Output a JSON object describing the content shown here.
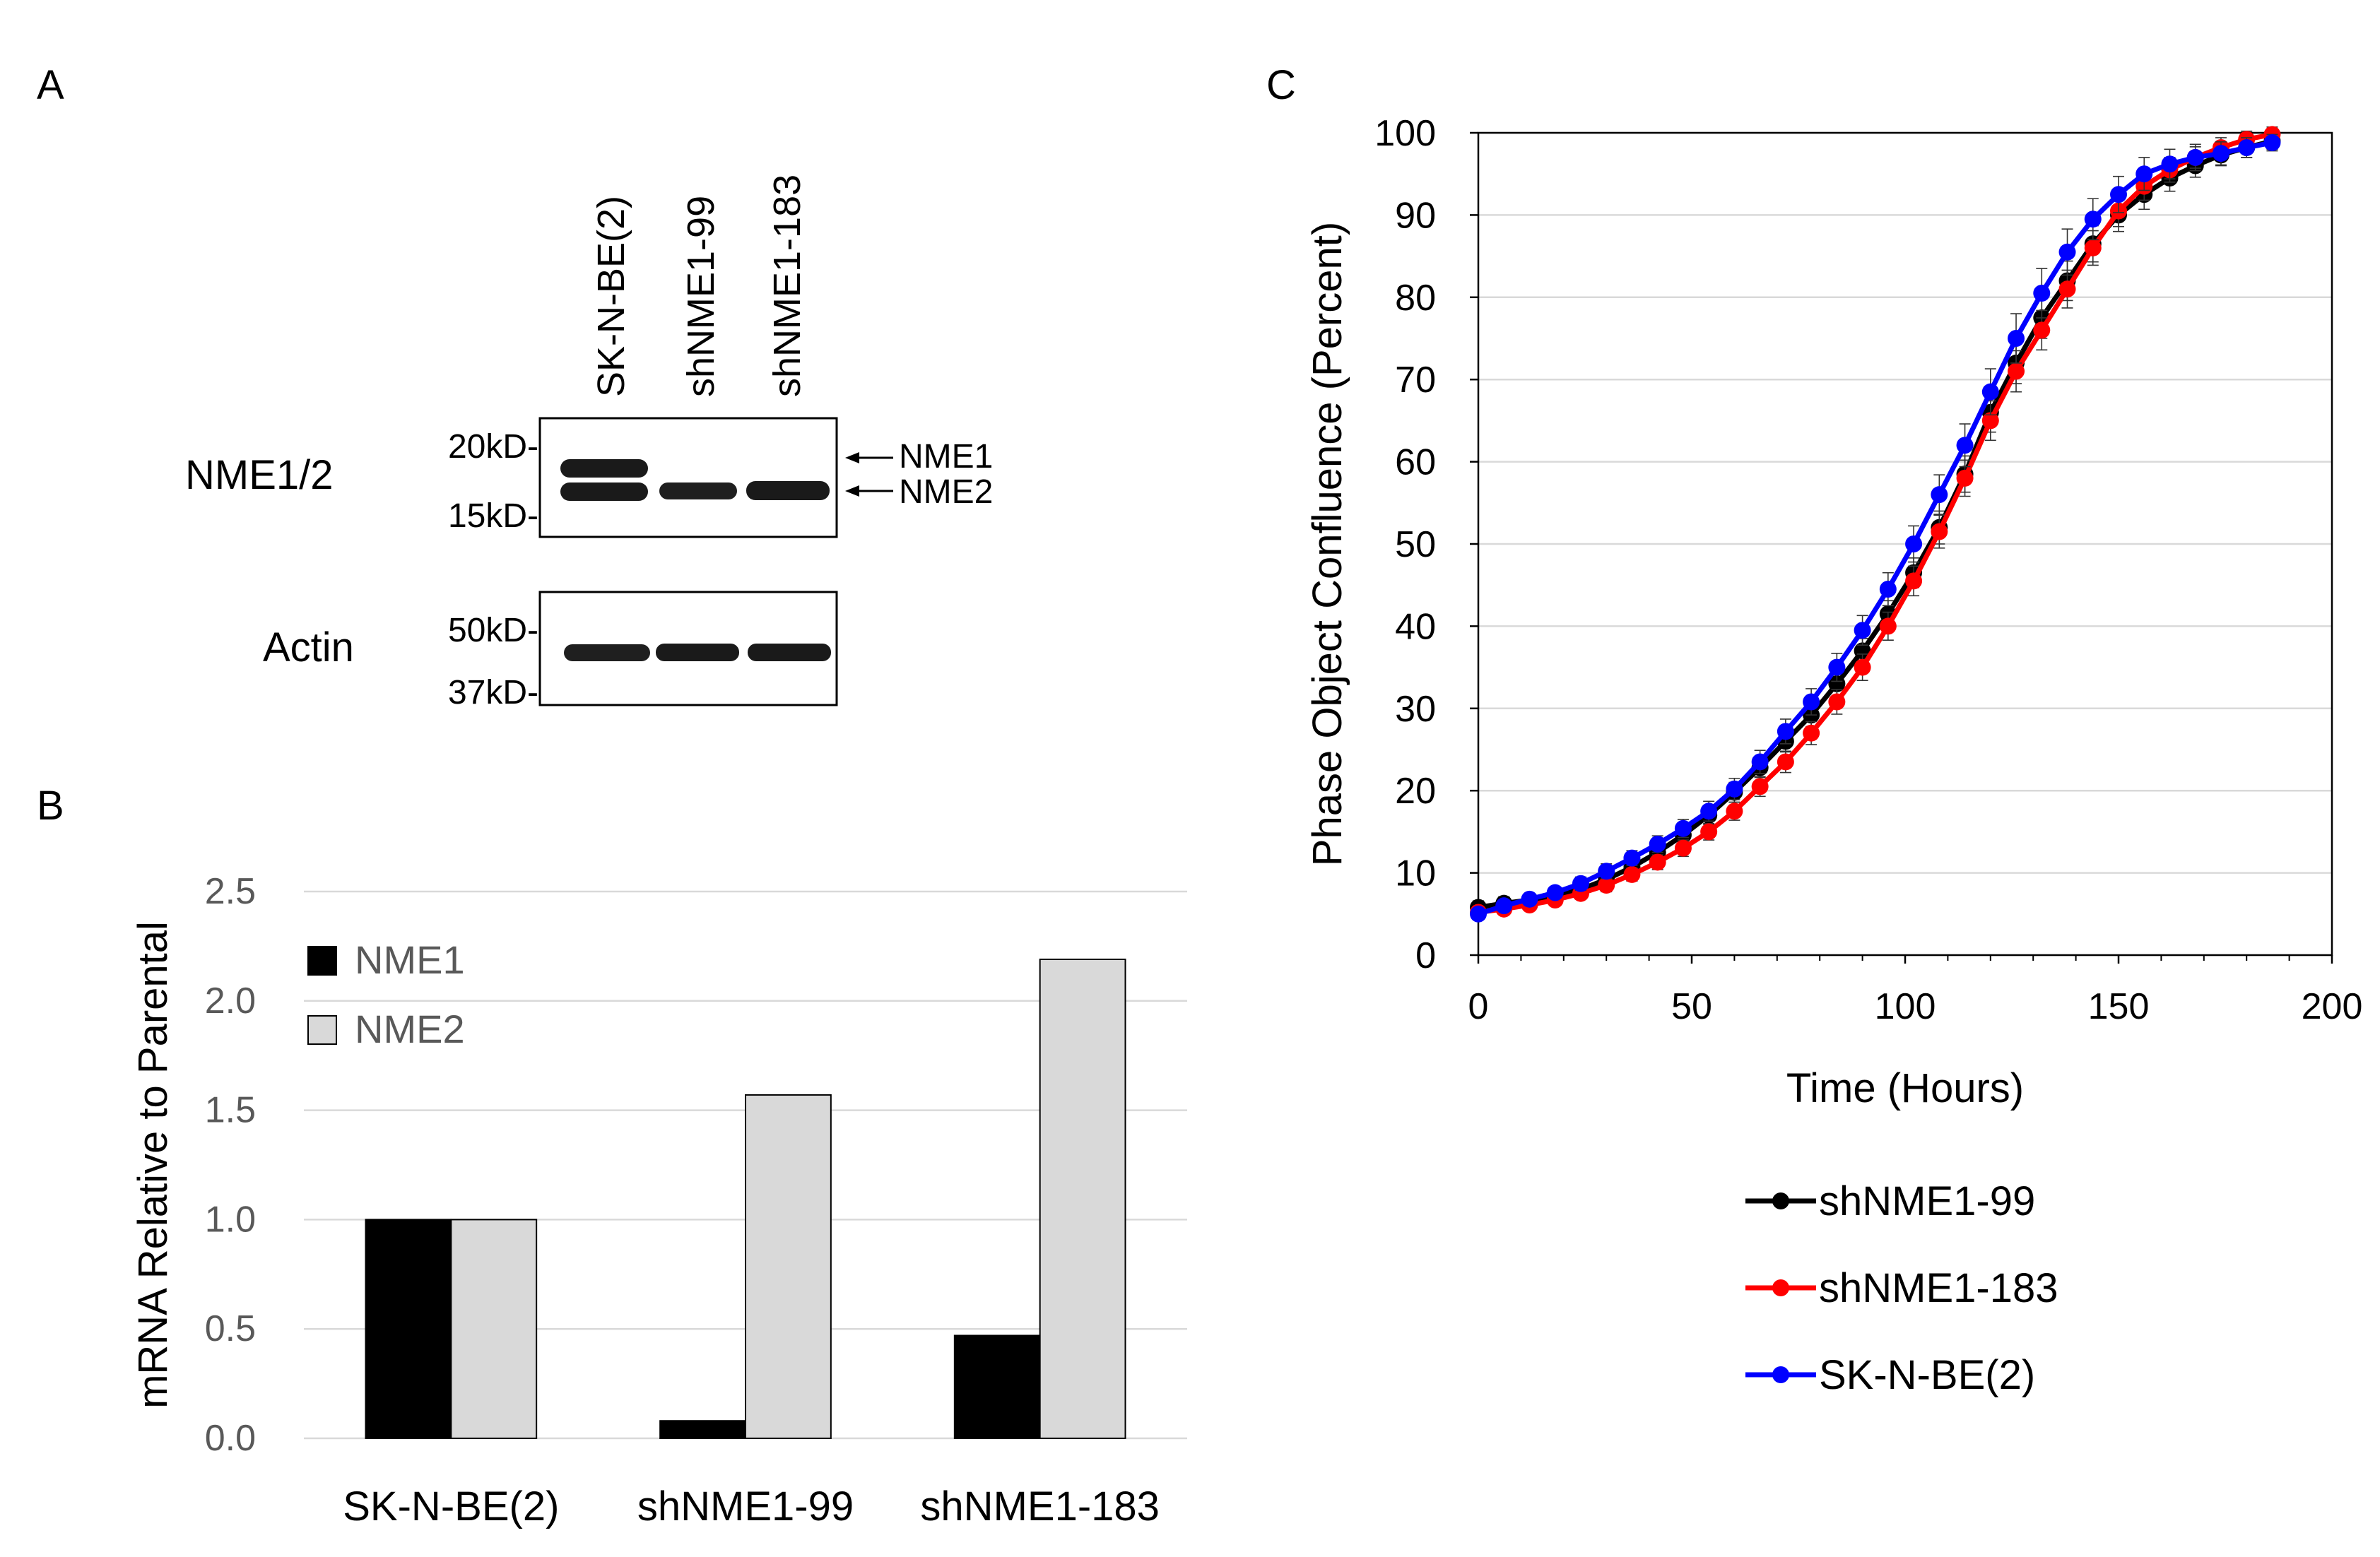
{
  "panel_a": {
    "label": "A",
    "lanes": [
      "SK-N-BE(2)",
      "shNME1-99",
      "shNME1-183"
    ],
    "blots": [
      {
        "name": "NME1/2",
        "markers": [
          "20kD-",
          "15kD-"
        ],
        "bands": [
          "NME1",
          "NME2"
        ]
      },
      {
        "name": "Actin",
        "markers": [
          "50kD-",
          "37kD-"
        ]
      }
    ],
    "arrow_glyph": "⟵"
  },
  "panel_b_label": "B",
  "panel_c_label": "C",
  "colors": {
    "nme1_bar": "#000000",
    "nme2_bar": "#d9d9d9",
    "shNME1-99": "#000000",
    "shNME1-183": "#ff0000",
    "SK-N-BE(2)": "#0000ff",
    "gridline": "#d9d9d9",
    "axis_text_b": "#595959"
  },
  "chart_data": [
    {
      "type": "bar",
      "panel": "B",
      "title": "",
      "xlabel": "",
      "ylabel": "mRNA Relative to Parental",
      "categories": [
        "SK-N-BE(2)",
        "shNME1-99",
        "shNME1-183"
      ],
      "series": [
        {
          "name": "NME1",
          "values": [
            1.0,
            0.08,
            0.47
          ]
        },
        {
          "name": "NME2",
          "values": [
            1.0,
            1.57,
            2.19
          ]
        }
      ],
      "ylim": [
        0,
        2.5
      ],
      "yticks": [
        0.0,
        0.5,
        1.0,
        1.5,
        2.0,
        2.5
      ],
      "ytick_labels": [
        "0.0",
        "0.5",
        "1.0",
        "1.5",
        "2.0",
        "2.5"
      ],
      "grid": true,
      "legend_position": "top-left"
    },
    {
      "type": "line",
      "panel": "C",
      "title": "",
      "xlabel": "Time (Hours)",
      "ylabel": "Phase Object Confluence (Percent)",
      "xlim": [
        0,
        200
      ],
      "ylim": [
        0,
        100
      ],
      "xticks": [
        0,
        50,
        100,
        150,
        200
      ],
      "yticks": [
        0,
        10,
        20,
        30,
        40,
        50,
        60,
        70,
        80,
        90,
        100
      ],
      "grid": true,
      "legend_position": "bottom-right, below plot",
      "x": [
        0,
        6,
        12,
        18,
        24,
        30,
        36,
        42,
        48,
        54,
        60,
        66,
        72,
        78,
        84,
        90,
        96,
        102,
        108,
        114,
        120,
        126,
        132,
        138,
        144,
        150,
        156,
        162,
        168,
        174,
        180,
        186
      ],
      "series": [
        {
          "name": "shNME1-99",
          "values": [
            5.8,
            6.3,
            6.7,
            7.2,
            8.0,
            9.2,
            10.7,
            12.5,
            14.6,
            17.0,
            19.8,
            22.8,
            26.0,
            29.2,
            33.0,
            37.0,
            41.5,
            46.5,
            52.0,
            58.5,
            66.0,
            72.0,
            77.5,
            82.0,
            86.5,
            90.0,
            92.5,
            94.5,
            96.0,
            97.3,
            98.2,
            99.0
          ],
          "errors": [
            0.8,
            0.8,
            0.8,
            0.8,
            0.9,
            0.9,
            1.0,
            1.0,
            1.1,
            1.1,
            1.2,
            1.2,
            1.3,
            1.4,
            1.5,
            1.5,
            1.6,
            1.8,
            2.0,
            2.2,
            2.4,
            2.5,
            2.5,
            2.4,
            2.2,
            2.0,
            1.8,
            1.6,
            1.4,
            1.3,
            1.2,
            1.0
          ]
        },
        {
          "name": "shNME1-183",
          "values": [
            5.2,
            5.6,
            6.1,
            6.7,
            7.5,
            8.5,
            9.8,
            11.3,
            13.0,
            15.0,
            17.5,
            20.5,
            23.5,
            27.0,
            30.8,
            35.0,
            40.0,
            45.5,
            51.5,
            58.0,
            65.0,
            71.0,
            76.0,
            81.0,
            86.0,
            90.5,
            93.5,
            95.5,
            97.0,
            98.2,
            99.2,
            99.8
          ],
          "errors": [
            0.6,
            0.6,
            0.6,
            0.7,
            0.7,
            0.8,
            0.8,
            0.9,
            1.0,
            1.0,
            1.1,
            1.2,
            1.3,
            1.4,
            1.5,
            1.6,
            1.7,
            1.8,
            2.0,
            2.2,
            2.4,
            2.5,
            2.4,
            2.3,
            2.1,
            1.9,
            1.7,
            1.5,
            1.3,
            1.2,
            1.0,
            0.9
          ]
        },
        {
          "name": "SK-N-BE(2)",
          "values": [
            5.0,
            6.0,
            6.8,
            7.6,
            8.7,
            10.2,
            11.8,
            13.5,
            15.4,
            17.5,
            20.2,
            23.5,
            27.2,
            30.8,
            35.0,
            39.5,
            44.5,
            50.0,
            56.0,
            62.0,
            68.5,
            75.0,
            80.5,
            85.5,
            89.5,
            92.5,
            95.0,
            96.2,
            97.0,
            97.5,
            98.2,
            98.8
          ],
          "errors": [
            0.6,
            0.6,
            0.7,
            0.7,
            0.8,
            0.9,
            0.9,
            1.0,
            1.1,
            1.2,
            1.3,
            1.4,
            1.5,
            1.6,
            1.7,
            1.8,
            2.0,
            2.2,
            2.4,
            2.6,
            2.8,
            3.0,
            3.0,
            2.8,
            2.5,
            2.2,
            2.0,
            1.8,
            1.6,
            1.4,
            1.2,
            1.0
          ]
        }
      ]
    }
  ]
}
